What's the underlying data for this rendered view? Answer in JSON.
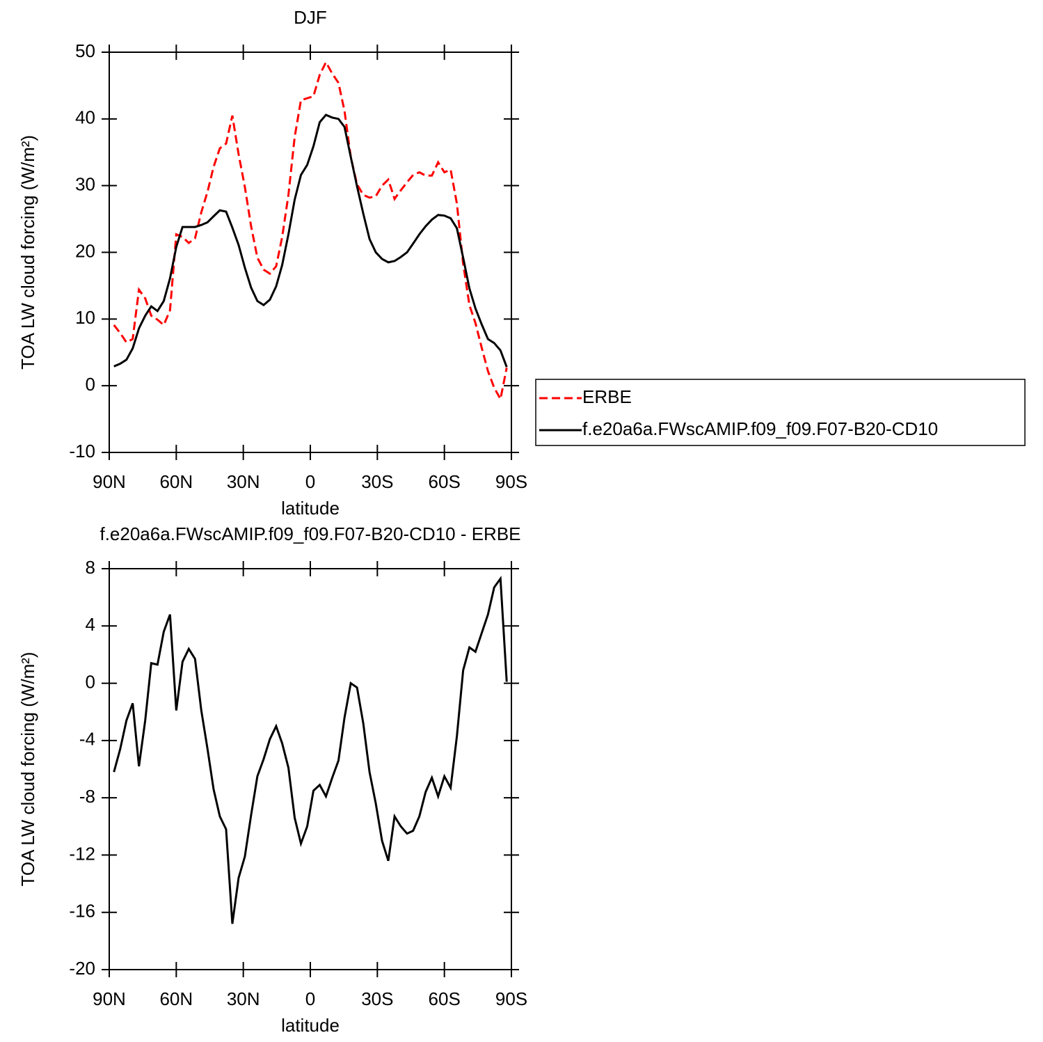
{
  "chart_data": [
    {
      "type": "line",
      "title": "DJF",
      "xlabel": "latitude",
      "ylabel": "TOA LW cloud forcing (W/m²)",
      "x": [
        87.9,
        85.1,
        82.3,
        79.5,
        76.7,
        73.9,
        71.2,
        68.4,
        65.6,
        62.8,
        60.0,
        57.2,
        54.4,
        51.6,
        48.8,
        46.0,
        43.3,
        40.5,
        37.7,
        34.9,
        32.1,
        29.3,
        26.5,
        23.7,
        20.9,
        18.1,
        15.3,
        12.6,
        9.8,
        7.0,
        4.2,
        1.4,
        -1.4,
        -4.2,
        -7.0,
        -9.8,
        -12.6,
        -15.3,
        -18.1,
        -20.9,
        -23.7,
        -26.5,
        -29.3,
        -32.1,
        -34.9,
        -37.7,
        -40.5,
        -43.3,
        -46.0,
        -48.8,
        -51.6,
        -54.4,
        -57.2,
        -60.0,
        -62.8,
        -65.6,
        -68.4,
        -71.2,
        -73.9,
        -76.7,
        -79.5,
        -82.3,
        -85.1,
        -87.9
      ],
      "xlim": [
        90,
        -90
      ],
      "xticks": [
        {
          "value": 90,
          "label": "90N"
        },
        {
          "value": 60,
          "label": "60N"
        },
        {
          "value": 30,
          "label": "30N"
        },
        0,
        {
          "value": -30,
          "label": "30S"
        },
        {
          "value": -60,
          "label": "60S"
        },
        {
          "value": -90,
          "label": "90S"
        }
      ],
      "ylim": [
        -10,
        50
      ],
      "yticks": [
        -10,
        0,
        10,
        20,
        30,
        40,
        50
      ],
      "legend": "right",
      "series": [
        {
          "name": "ERBE",
          "color": "#ff0000",
          "linestyle": "dashed",
          "values": [
            9.1,
            7.9,
            6.5,
            7.0,
            14.4,
            13.1,
            10.5,
            9.9,
            9.1,
            11.3,
            22.7,
            22.3,
            21.4,
            22.1,
            26.0,
            29.1,
            32.8,
            35.6,
            36.3,
            40.5,
            34.7,
            29.8,
            23.9,
            19.2,
            17.4,
            16.8,
            17.9,
            22.3,
            28.6,
            37.3,
            42.8,
            43.1,
            43.4,
            46.6,
            48.5,
            46.8,
            45.4,
            41.2,
            34.3,
            30.2,
            28.6,
            28.2,
            28.4,
            30.0,
            30.9,
            28.0,
            29.3,
            30.5,
            31.6,
            32.0,
            31.5,
            31.5,
            33.5,
            32.0,
            32.4,
            27.3,
            18.3,
            12.1,
            9.4,
            5.7,
            2.2,
            -0.3,
            -2.0,
            2.7
          ]
        },
        {
          "name": "f.e20a6a.FWscAMIP.f09_f09.F07-B20-CD10",
          "color": "#000000",
          "linestyle": "solid",
          "values": [
            2.9,
            3.3,
            3.9,
            5.6,
            8.6,
            10.5,
            11.9,
            11.2,
            12.7,
            16.1,
            20.8,
            23.8,
            23.8,
            23.8,
            24.1,
            24.5,
            25.4,
            26.3,
            26.1,
            23.7,
            21.1,
            17.7,
            14.7,
            12.7,
            12.1,
            12.9,
            14.9,
            18.1,
            22.7,
            27.9,
            31.6,
            33.1,
            35.9,
            39.5,
            40.6,
            40.2,
            40.0,
            38.8,
            34.3,
            29.9,
            25.8,
            22.0,
            20.0,
            19.0,
            18.5,
            18.7,
            19.3,
            20.0,
            21.3,
            22.7,
            23.9,
            24.9,
            25.6,
            25.5,
            25.1,
            23.6,
            19.2,
            14.6,
            11.6,
            9.2,
            7.0,
            6.4,
            5.3,
            2.8
          ]
        }
      ]
    },
    {
      "type": "line",
      "title": "f.e20a6a.FWscAMIP.f09_f09.F07-B20-CD10 - ERBE",
      "xlabel": "latitude",
      "ylabel": "TOA LW cloud forcing (W/m²)",
      "x": [
        87.9,
        85.1,
        82.3,
        79.5,
        76.7,
        73.9,
        71.2,
        68.4,
        65.6,
        62.8,
        60.0,
        57.2,
        54.4,
        51.6,
        48.8,
        46.0,
        43.3,
        40.5,
        37.7,
        34.9,
        32.1,
        29.3,
        26.5,
        23.7,
        20.9,
        18.1,
        15.3,
        12.6,
        9.8,
        7.0,
        4.2,
        1.4,
        -1.4,
        -4.2,
        -7.0,
        -9.8,
        -12.6,
        -15.3,
        -18.1,
        -20.9,
        -23.7,
        -26.5,
        -29.3,
        -32.1,
        -34.9,
        -37.7,
        -40.5,
        -43.3,
        -46.0,
        -48.8,
        -51.6,
        -54.4,
        -57.2,
        -60.0,
        -62.8,
        -65.6,
        -68.4,
        -71.2,
        -73.9,
        -76.7,
        -79.5,
        -82.3,
        -85.1,
        -87.9
      ],
      "xlim": [
        90,
        -90
      ],
      "xticks": [
        {
          "value": 90,
          "label": "90N"
        },
        {
          "value": 60,
          "label": "60N"
        },
        {
          "value": 30,
          "label": "30N"
        },
        0,
        {
          "value": -30,
          "label": "30S"
        },
        {
          "value": -60,
          "label": "60S"
        },
        {
          "value": -90,
          "label": "90S"
        }
      ],
      "ylim": [
        -20,
        8
      ],
      "yticks": [
        -20,
        -16,
        -12,
        -8,
        -4,
        0,
        4,
        8
      ],
      "series": [
        {
          "color": "#000000",
          "linestyle": "solid",
          "values": [
            -6.2,
            -4.6,
            -2.6,
            -1.4,
            -5.8,
            -2.6,
            1.4,
            1.3,
            3.6,
            4.8,
            -1.9,
            1.5,
            2.4,
            1.7,
            -1.9,
            -4.6,
            -7.4,
            -9.3,
            -10.2,
            -16.8,
            -13.6,
            -12.1,
            -9.2,
            -6.5,
            -5.3,
            -3.9,
            -3.0,
            -4.2,
            -5.9,
            -9.4,
            -11.2,
            -10.0,
            -7.5,
            -7.1,
            -7.9,
            -6.6,
            -5.4,
            -2.4,
            0.0,
            -0.3,
            -2.8,
            -6.2,
            -8.4,
            -11.0,
            -12.4,
            -9.3,
            -10.0,
            -10.5,
            -10.3,
            -9.3,
            -7.6,
            -6.6,
            -7.9,
            -6.5,
            -7.3,
            -3.7,
            0.9,
            2.5,
            2.2,
            3.5,
            4.8,
            6.7,
            7.3,
            0.1
          ]
        }
      ]
    }
  ]
}
